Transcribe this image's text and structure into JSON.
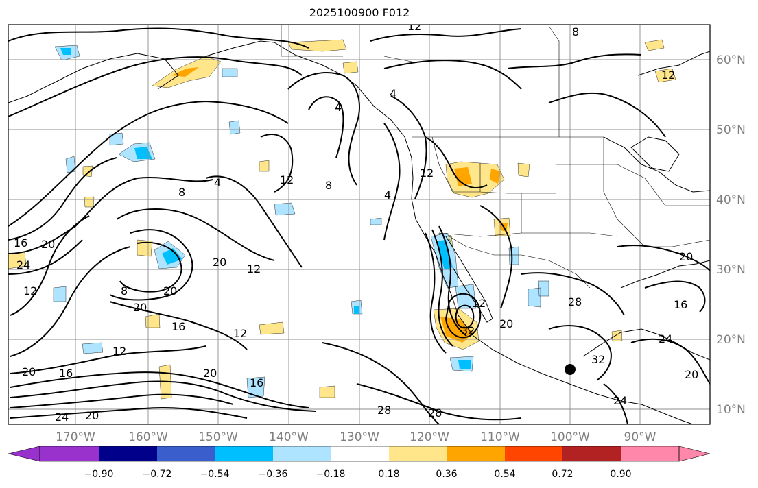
{
  "title": "2025100900 F012",
  "lon_labels": [
    "170°W",
    "160°W",
    "150°W",
    "140°W",
    "130°W",
    "120°W",
    "110°W",
    "100°W",
    "90°W"
  ],
  "lat_labels": [
    "60°N",
    "50°N",
    "40°N",
    "30°N",
    "20°N",
    "10°N"
  ],
  "contour_labels": [
    "12",
    "8",
    "4",
    "12",
    "4",
    "4",
    "12",
    "8",
    "8",
    "12",
    "4",
    "16",
    "20",
    "24",
    "12",
    "8",
    "20",
    "12",
    "20",
    "20",
    "16",
    "12",
    "12",
    "20",
    "16",
    "20",
    "16",
    "24",
    "12",
    "32",
    "20",
    "28",
    "28",
    "28",
    "32",
    "24",
    "20",
    "20",
    "16",
    "24",
    "20"
  ],
  "colorbar": {
    "ticks": [
      "−0.90",
      "−0.72",
      "−0.54",
      "−0.36",
      "−0.18",
      "0.18",
      "0.36",
      "0.54",
      "0.72",
      "0.90"
    ],
    "colors": [
      "#9932cc",
      "#00008b",
      "#3a5fcd",
      "#00bfff",
      "#aee4ff",
      "#ffffff",
      "#ffe68a",
      "#ffa500",
      "#ff4500",
      "#b22222",
      "#ff88aa",
      "#ff88aa"
    ]
  },
  "colors": {
    "positive_fill": "#ffe68a",
    "positive_core": "#ffa500",
    "negative_fill": "#aee4ff",
    "negative_core": "#00bfff"
  },
  "marker": "black-dot"
}
